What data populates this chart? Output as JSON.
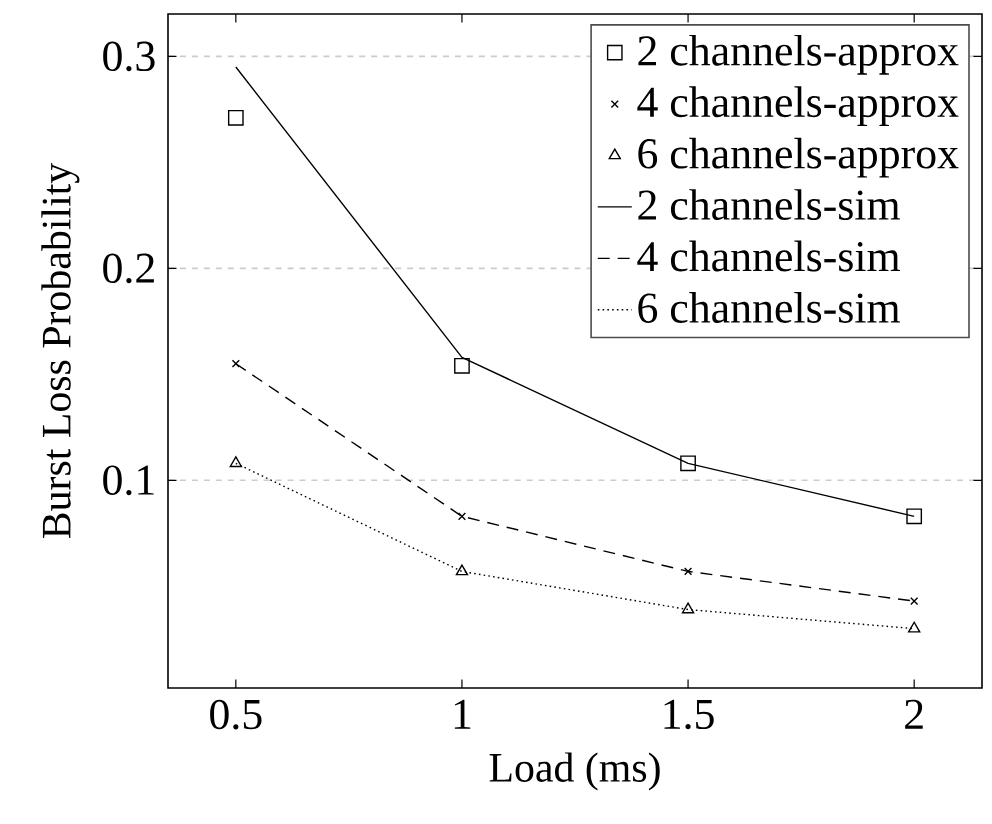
{
  "chart_data": {
    "type": "line",
    "xlabel": "Load (ms)",
    "ylabel": "Burst Loss Probability",
    "x": [
      0.5,
      1,
      1.5,
      2
    ],
    "series": [
      {
        "name": "2 channels-approx",
        "type": "scatter",
        "marker": "square",
        "color": "#000000",
        "values": [
          0.271,
          0.154,
          0.108,
          0.083
        ]
      },
      {
        "name": "4 channels-approx",
        "type": "scatter",
        "marker": "cross",
        "color": "#000000",
        "values": [
          0.155,
          0.083,
          0.057,
          0.043
        ]
      },
      {
        "name": "6 channels-approx",
        "type": "scatter",
        "marker": "triangle",
        "color": "#000000",
        "values": [
          0.108,
          0.057,
          0.039,
          0.03
        ]
      },
      {
        "name": "2 channels-sim",
        "line_style": "solid",
        "color": "#000000",
        "values": [
          0.295,
          0.158,
          0.108,
          0.083
        ]
      },
      {
        "name": "4 channels-sim",
        "line_style": "dashed",
        "color": "#000000",
        "values": [
          0.155,
          0.083,
          0.057,
          0.043
        ]
      },
      {
        "name": "6 channels-sim",
        "line_style": "dotted",
        "color": "#000000",
        "values": [
          0.108,
          0.057,
          0.039,
          0.03
        ]
      }
    ],
    "xlim": [
      0.35,
      2.15
    ],
    "ylim": [
      0.002,
      0.32
    ],
    "xticks": [
      0.5,
      1,
      1.5,
      2
    ],
    "yticks": [
      0.1,
      0.2,
      0.3
    ],
    "grid": "y",
    "legend": "top right"
  }
}
